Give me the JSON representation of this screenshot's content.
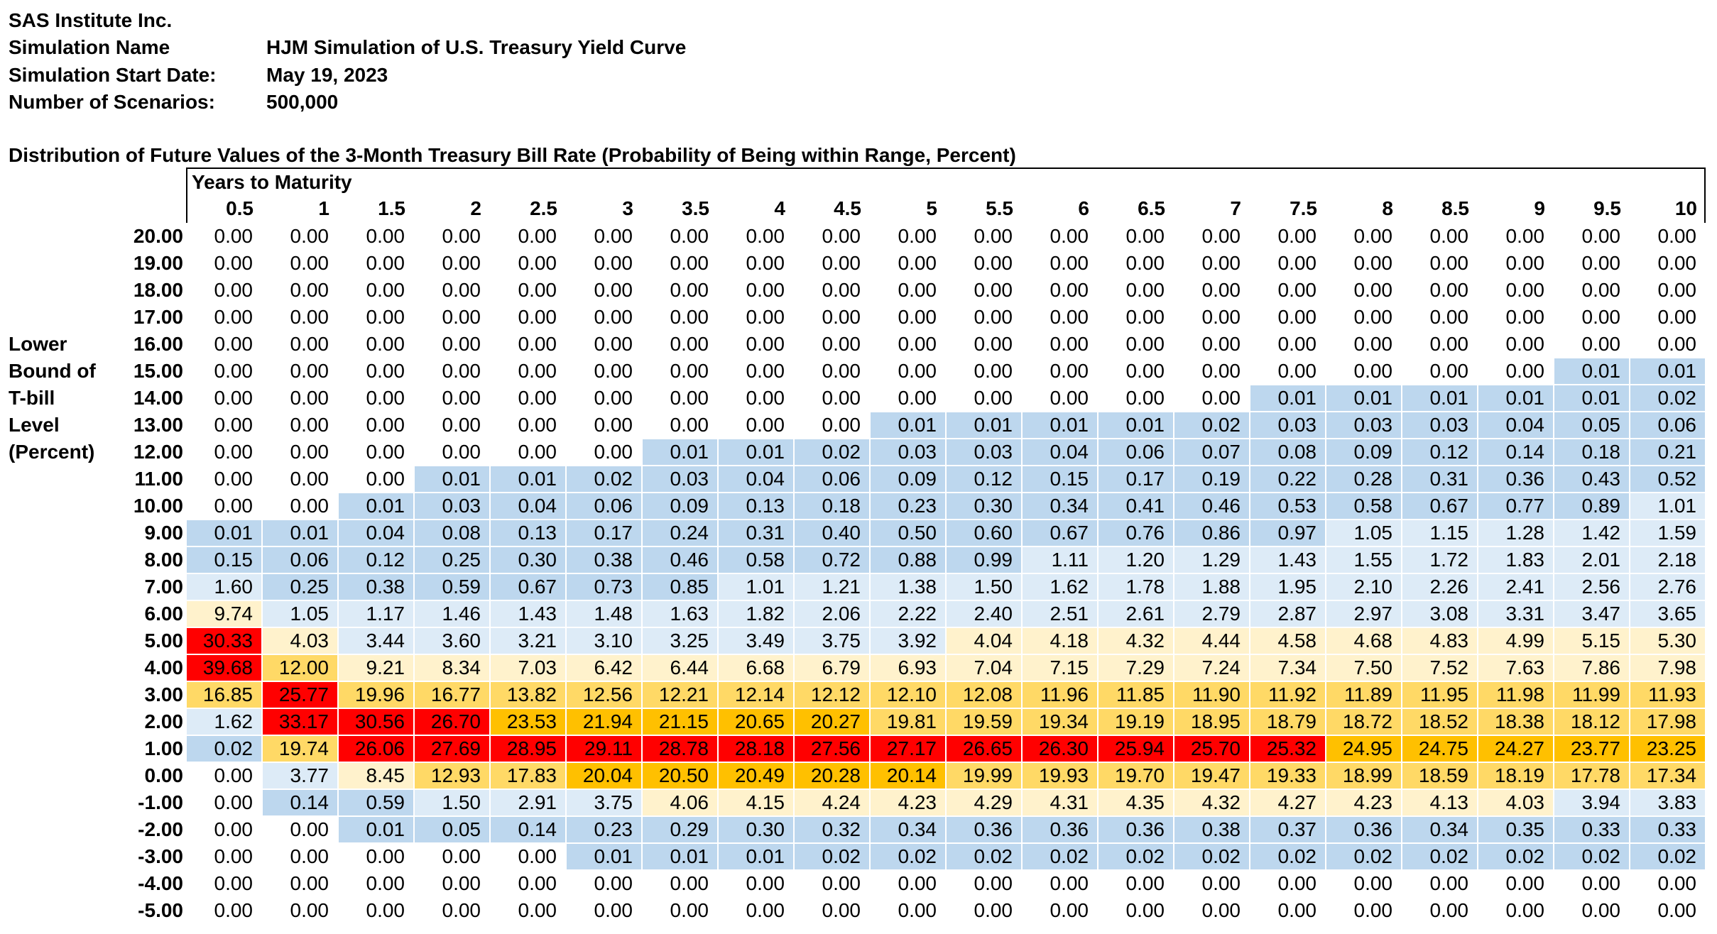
{
  "header": {
    "company": "SAS Institute Inc.",
    "fields": [
      {
        "label": "Simulation Name",
        "value": "HJM Simulation of U.S. Treasury Yield Curve"
      },
      {
        "label": "Simulation Start Date:",
        "value": "May 19, 2023"
      },
      {
        "label": "Number of Scenarios:",
        "value": "500,000"
      }
    ]
  },
  "table": {
    "title": "Distribution of Future Values of the 3-Month Treasury Bill Rate (Probability of Being within Range, Percent)",
    "column_group": "Years to Maturity",
    "row_label": [
      "Lower",
      "Bound of",
      "T-bill",
      "Level",
      "(Percent)"
    ],
    "columns": [
      "0.5",
      "1",
      "1.5",
      "2",
      "2.5",
      "3",
      "3.5",
      "4",
      "4.5",
      "5",
      "5.5",
      "6",
      "6.5",
      "7",
      "7.5",
      "8",
      "8.5",
      "9",
      "9.5",
      "10"
    ],
    "rows": [
      {
        "label": "20.00",
        "values": [
          "0.00",
          "0.00",
          "0.00",
          "0.00",
          "0.00",
          "0.00",
          "0.00",
          "0.00",
          "0.00",
          "0.00",
          "0.00",
          "0.00",
          "0.00",
          "0.00",
          "0.00",
          "0.00",
          "0.00",
          "0.00",
          "0.00",
          "0.00"
        ]
      },
      {
        "label": "19.00",
        "values": [
          "0.00",
          "0.00",
          "0.00",
          "0.00",
          "0.00",
          "0.00",
          "0.00",
          "0.00",
          "0.00",
          "0.00",
          "0.00",
          "0.00",
          "0.00",
          "0.00",
          "0.00",
          "0.00",
          "0.00",
          "0.00",
          "0.00",
          "0.00"
        ]
      },
      {
        "label": "18.00",
        "values": [
          "0.00",
          "0.00",
          "0.00",
          "0.00",
          "0.00",
          "0.00",
          "0.00",
          "0.00",
          "0.00",
          "0.00",
          "0.00",
          "0.00",
          "0.00",
          "0.00",
          "0.00",
          "0.00",
          "0.00",
          "0.00",
          "0.00",
          "0.00"
        ]
      },
      {
        "label": "17.00",
        "values": [
          "0.00",
          "0.00",
          "0.00",
          "0.00",
          "0.00",
          "0.00",
          "0.00",
          "0.00",
          "0.00",
          "0.00",
          "0.00",
          "0.00",
          "0.00",
          "0.00",
          "0.00",
          "0.00",
          "0.00",
          "0.00",
          "0.00",
          "0.00"
        ]
      },
      {
        "label": "16.00",
        "values": [
          "0.00",
          "0.00",
          "0.00",
          "0.00",
          "0.00",
          "0.00",
          "0.00",
          "0.00",
          "0.00",
          "0.00",
          "0.00",
          "0.00",
          "0.00",
          "0.00",
          "0.00",
          "0.00",
          "0.00",
          "0.00",
          "0.00",
          "0.00"
        ]
      },
      {
        "label": "15.00",
        "values": [
          "0.00",
          "0.00",
          "0.00",
          "0.00",
          "0.00",
          "0.00",
          "0.00",
          "0.00",
          "0.00",
          "0.00",
          "0.00",
          "0.00",
          "0.00",
          "0.00",
          "0.00",
          "0.00",
          "0.00",
          "0.00",
          "0.01",
          "0.01"
        ]
      },
      {
        "label": "14.00",
        "values": [
          "0.00",
          "0.00",
          "0.00",
          "0.00",
          "0.00",
          "0.00",
          "0.00",
          "0.00",
          "0.00",
          "0.00",
          "0.00",
          "0.00",
          "0.00",
          "0.00",
          "0.01",
          "0.01",
          "0.01",
          "0.01",
          "0.01",
          "0.02"
        ]
      },
      {
        "label": "13.00",
        "values": [
          "0.00",
          "0.00",
          "0.00",
          "0.00",
          "0.00",
          "0.00",
          "0.00",
          "0.00",
          "0.00",
          "0.01",
          "0.01",
          "0.01",
          "0.01",
          "0.02",
          "0.03",
          "0.03",
          "0.03",
          "0.04",
          "0.05",
          "0.06"
        ]
      },
      {
        "label": "12.00",
        "values": [
          "0.00",
          "0.00",
          "0.00",
          "0.00",
          "0.00",
          "0.00",
          "0.01",
          "0.01",
          "0.02",
          "0.03",
          "0.03",
          "0.04",
          "0.06",
          "0.07",
          "0.08",
          "0.09",
          "0.12",
          "0.14",
          "0.18",
          "0.21"
        ]
      },
      {
        "label": "11.00",
        "values": [
          "0.00",
          "0.00",
          "0.00",
          "0.01",
          "0.01",
          "0.02",
          "0.03",
          "0.04",
          "0.06",
          "0.09",
          "0.12",
          "0.15",
          "0.17",
          "0.19",
          "0.22",
          "0.28",
          "0.31",
          "0.36",
          "0.43",
          "0.52"
        ]
      },
      {
        "label": "10.00",
        "values": [
          "0.00",
          "0.00",
          "0.01",
          "0.03",
          "0.04",
          "0.06",
          "0.09",
          "0.13",
          "0.18",
          "0.23",
          "0.30",
          "0.34",
          "0.41",
          "0.46",
          "0.53",
          "0.58",
          "0.67",
          "0.77",
          "0.89",
          "1.01"
        ]
      },
      {
        "label": "9.00",
        "values": [
          "0.01",
          "0.01",
          "0.04",
          "0.08",
          "0.13",
          "0.17",
          "0.24",
          "0.31",
          "0.40",
          "0.50",
          "0.60",
          "0.67",
          "0.76",
          "0.86",
          "0.97",
          "1.05",
          "1.15",
          "1.28",
          "1.42",
          "1.59"
        ]
      },
      {
        "label": "8.00",
        "values": [
          "0.15",
          "0.06",
          "0.12",
          "0.25",
          "0.30",
          "0.38",
          "0.46",
          "0.58",
          "0.72",
          "0.88",
          "0.99",
          "1.11",
          "1.20",
          "1.29",
          "1.43",
          "1.55",
          "1.72",
          "1.83",
          "2.01",
          "2.18"
        ]
      },
      {
        "label": "7.00",
        "values": [
          "1.60",
          "0.25",
          "0.38",
          "0.59",
          "0.67",
          "0.73",
          "0.85",
          "1.01",
          "1.21",
          "1.38",
          "1.50",
          "1.62",
          "1.78",
          "1.88",
          "1.95",
          "2.10",
          "2.26",
          "2.41",
          "2.56",
          "2.76"
        ]
      },
      {
        "label": "6.00",
        "values": [
          "9.74",
          "1.05",
          "1.17",
          "1.46",
          "1.43",
          "1.48",
          "1.63",
          "1.82",
          "2.06",
          "2.22",
          "2.40",
          "2.51",
          "2.61",
          "2.79",
          "2.87",
          "2.97",
          "3.08",
          "3.31",
          "3.47",
          "3.65"
        ]
      },
      {
        "label": "5.00",
        "values": [
          "30.33",
          "4.03",
          "3.44",
          "3.60",
          "3.21",
          "3.10",
          "3.25",
          "3.49",
          "3.75",
          "3.92",
          "4.04",
          "4.18",
          "4.32",
          "4.44",
          "4.58",
          "4.68",
          "4.83",
          "4.99",
          "5.15",
          "5.30"
        ]
      },
      {
        "label": "4.00",
        "values": [
          "39.68",
          "12.00",
          "9.21",
          "8.34",
          "7.03",
          "6.42",
          "6.44",
          "6.68",
          "6.79",
          "6.93",
          "7.04",
          "7.15",
          "7.29",
          "7.24",
          "7.34",
          "7.50",
          "7.52",
          "7.63",
          "7.86",
          "7.98"
        ]
      },
      {
        "label": "3.00",
        "values": [
          "16.85",
          "25.77",
          "19.96",
          "16.77",
          "13.82",
          "12.56",
          "12.21",
          "12.14",
          "12.12",
          "12.10",
          "12.08",
          "11.96",
          "11.85",
          "11.90",
          "11.92",
          "11.89",
          "11.95",
          "11.98",
          "11.99",
          "11.93"
        ]
      },
      {
        "label": "2.00",
        "values": [
          "1.62",
          "33.17",
          "30.56",
          "26.70",
          "23.53",
          "21.94",
          "21.15",
          "20.65",
          "20.27",
          "19.81",
          "19.59",
          "19.34",
          "19.19",
          "18.95",
          "18.79",
          "18.72",
          "18.52",
          "18.38",
          "18.12",
          "17.98"
        ]
      },
      {
        "label": "1.00",
        "values": [
          "0.02",
          "19.74",
          "26.06",
          "27.69",
          "28.95",
          "29.11",
          "28.78",
          "28.18",
          "27.56",
          "27.17",
          "26.65",
          "26.30",
          "25.94",
          "25.70",
          "25.32",
          "24.95",
          "24.75",
          "24.27",
          "23.77",
          "23.25"
        ]
      },
      {
        "label": "0.00",
        "values": [
          "0.00",
          "3.77",
          "8.45",
          "12.93",
          "17.83",
          "20.04",
          "20.50",
          "20.49",
          "20.28",
          "20.14",
          "19.99",
          "19.93",
          "19.70",
          "19.47",
          "19.33",
          "18.99",
          "18.59",
          "18.19",
          "17.78",
          "17.34"
        ]
      },
      {
        "label": "-1.00",
        "values": [
          "0.00",
          "0.14",
          "0.59",
          "1.50",
          "2.91",
          "3.75",
          "4.06",
          "4.15",
          "4.24",
          "4.23",
          "4.29",
          "4.31",
          "4.35",
          "4.32",
          "4.27",
          "4.23",
          "4.13",
          "4.03",
          "3.94",
          "3.83"
        ]
      },
      {
        "label": "-2.00",
        "values": [
          "0.00",
          "0.00",
          "0.01",
          "0.05",
          "0.14",
          "0.23",
          "0.29",
          "0.30",
          "0.32",
          "0.34",
          "0.36",
          "0.36",
          "0.36",
          "0.38",
          "0.37",
          "0.36",
          "0.34",
          "0.35",
          "0.33",
          "0.33"
        ]
      },
      {
        "label": "-3.00",
        "values": [
          "0.00",
          "0.00",
          "0.00",
          "0.00",
          "0.00",
          "0.01",
          "0.01",
          "0.01",
          "0.02",
          "0.02",
          "0.02",
          "0.02",
          "0.02",
          "0.02",
          "0.02",
          "0.02",
          "0.02",
          "0.02",
          "0.02",
          "0.02"
        ]
      },
      {
        "label": "-4.00",
        "values": [
          "0.00",
          "0.00",
          "0.00",
          "0.00",
          "0.00",
          "0.00",
          "0.00",
          "0.00",
          "0.00",
          "0.00",
          "0.00",
          "0.00",
          "0.00",
          "0.00",
          "0.00",
          "0.00",
          "0.00",
          "0.00",
          "0.00",
          "0.00"
        ]
      },
      {
        "label": "-5.00",
        "values": [
          "0.00",
          "0.00",
          "0.00",
          "0.00",
          "0.00",
          "0.00",
          "0.00",
          "0.00",
          "0.00",
          "0.00",
          "0.00",
          "0.00",
          "0.00",
          "0.00",
          "0.00",
          "0.00",
          "0.00",
          "0.00",
          "0.00",
          "0.00"
        ]
      }
    ]
  }
}
